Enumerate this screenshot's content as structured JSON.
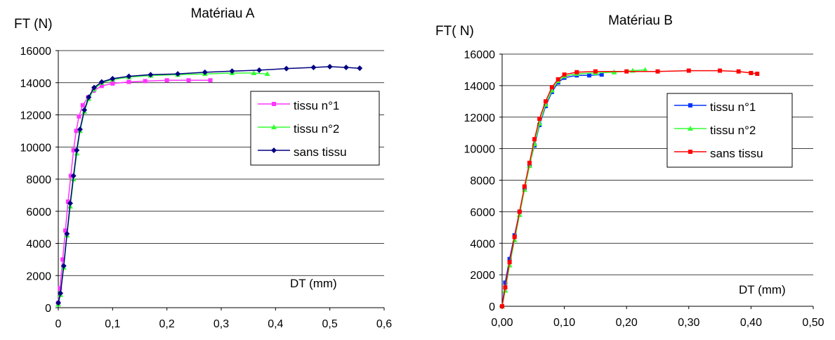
{
  "chart_data": [
    {
      "type": "line",
      "title": "Matériau A",
      "ylabel": "FT (N)",
      "xlabel": "DT (mm)",
      "xlim": [
        0,
        0.6
      ],
      "ylim": [
        0,
        16000
      ],
      "xticks": [
        "0",
        "0,1",
        "0,2",
        "0,3",
        "0,4",
        "0,5",
        "0,6"
      ],
      "yticks": [
        "0",
        "2000",
        "4000",
        "6000",
        "8000",
        "10000",
        "12000",
        "14000",
        "16000"
      ],
      "grid": "horizontal",
      "legend_position": "right",
      "series": [
        {
          "name": "tissu n°1",
          "color": "#ff33ff",
          "marker": "square",
          "points": [
            [
              0,
              300
            ],
            [
              0.003,
              1200
            ],
            [
              0.008,
              3000
            ],
            [
              0.013,
              4800
            ],
            [
              0.018,
              6600
            ],
            [
              0.023,
              8200
            ],
            [
              0.028,
              9800
            ],
            [
              0.033,
              11000
            ],
            [
              0.038,
              11900
            ],
            [
              0.045,
              12600
            ],
            [
              0.055,
              13100
            ],
            [
              0.065,
              13500
            ],
            [
              0.08,
              13800
            ],
            [
              0.1,
              13950
            ],
            [
              0.13,
              14050
            ],
            [
              0.16,
              14100
            ],
            [
              0.2,
              14150
            ],
            [
              0.24,
              14150
            ],
            [
              0.28,
              14150
            ]
          ]
        },
        {
          "name": "tissu n°2",
          "color": "#33ff33",
          "marker": "triangle",
          "points": [
            [
              0,
              200
            ],
            [
              0.004,
              800
            ],
            [
              0.01,
              2500
            ],
            [
              0.016,
              4500
            ],
            [
              0.022,
              6300
            ],
            [
              0.028,
              8000
            ],
            [
              0.034,
              9600
            ],
            [
              0.04,
              11000
            ],
            [
              0.048,
              12200
            ],
            [
              0.056,
              13000
            ],
            [
              0.066,
              13600
            ],
            [
              0.08,
              14000
            ],
            [
              0.1,
              14200
            ],
            [
              0.13,
              14350
            ],
            [
              0.17,
              14450
            ],
            [
              0.22,
              14500
            ],
            [
              0.27,
              14550
            ],
            [
              0.32,
              14600
            ],
            [
              0.36,
              14600
            ],
            [
              0.385,
              14550
            ]
          ]
        },
        {
          "name": "sans tissu",
          "color": "#000080",
          "marker": "diamond",
          "points": [
            [
              0,
              300
            ],
            [
              0.004,
              900
            ],
            [
              0.01,
              2600
            ],
            [
              0.016,
              4600
            ],
            [
              0.022,
              6500
            ],
            [
              0.028,
              8200
            ],
            [
              0.034,
              9800
            ],
            [
              0.04,
              11100
            ],
            [
              0.048,
              12300
            ],
            [
              0.056,
              13100
            ],
            [
              0.066,
              13700
            ],
            [
              0.08,
              14050
            ],
            [
              0.1,
              14250
            ],
            [
              0.13,
              14400
            ],
            [
              0.17,
              14500
            ],
            [
              0.22,
              14550
            ],
            [
              0.27,
              14650
            ],
            [
              0.32,
              14720
            ],
            [
              0.37,
              14780
            ],
            [
              0.42,
              14880
            ],
            [
              0.47,
              14950
            ],
            [
              0.5,
              15000
            ],
            [
              0.53,
              14950
            ],
            [
              0.555,
              14900
            ]
          ]
        }
      ]
    },
    {
      "type": "line",
      "title": "Matériau B",
      "ylabel": "FT( N)",
      "xlabel": "DT (mm)",
      "xlim": [
        0,
        0.5
      ],
      "ylim": [
        0,
        16000
      ],
      "xticks": [
        "0,00",
        "0,10",
        "0,20",
        "0,30",
        "0,40",
        "0,50"
      ],
      "yticks": [
        "0",
        "2000",
        "4000",
        "6000",
        "8000",
        "10000",
        "12000",
        "14000",
        "16000"
      ],
      "grid": "horizontal",
      "legend_position": "right",
      "series": [
        {
          "name": "tissu n°1",
          "color": "#0033ff",
          "marker": "square",
          "points": [
            [
              0,
              0
            ],
            [
              0.005,
              1500
            ],
            [
              0.012,
              3000
            ],
            [
              0.02,
              4500
            ],
            [
              0.028,
              6000
            ],
            [
              0.036,
              7500
            ],
            [
              0.044,
              9000
            ],
            [
              0.052,
              10200
            ],
            [
              0.06,
              11500
            ],
            [
              0.07,
              12700
            ],
            [
              0.08,
              13600
            ],
            [
              0.09,
              14200
            ],
            [
              0.1,
              14500
            ],
            [
              0.12,
              14650
            ],
            [
              0.14,
              14650
            ],
            [
              0.16,
              14700
            ]
          ]
        },
        {
          "name": "tissu n°2",
          "color": "#33ff33",
          "marker": "triangle",
          "points": [
            [
              0,
              0
            ],
            [
              0.005,
              1000
            ],
            [
              0.012,
              2600
            ],
            [
              0.02,
              4200
            ],
            [
              0.028,
              5800
            ],
            [
              0.036,
              7400
            ],
            [
              0.044,
              8900
            ],
            [
              0.052,
              10300
            ],
            [
              0.06,
              11600
            ],
            [
              0.07,
              12800
            ],
            [
              0.08,
              13700
            ],
            [
              0.09,
              14300
            ],
            [
              0.1,
              14600
            ],
            [
              0.12,
              14750
            ],
            [
              0.15,
              14800
            ],
            [
              0.18,
              14850
            ],
            [
              0.21,
              14950
            ],
            [
              0.23,
              15000
            ]
          ]
        },
        {
          "name": "sans tissu",
          "color": "#ff0000",
          "marker": "square",
          "points": [
            [
              0,
              0
            ],
            [
              0.005,
              1200
            ],
            [
              0.012,
              2800
            ],
            [
              0.02,
              4400
            ],
            [
              0.028,
              6000
            ],
            [
              0.036,
              7600
            ],
            [
              0.044,
              9100
            ],
            [
              0.052,
              10600
            ],
            [
              0.06,
              11900
            ],
            [
              0.07,
              13000
            ],
            [
              0.08,
              13900
            ],
            [
              0.09,
              14400
            ],
            [
              0.1,
              14700
            ],
            [
              0.12,
              14850
            ],
            [
              0.15,
              14900
            ],
            [
              0.2,
              14900
            ],
            [
              0.25,
              14900
            ],
            [
              0.3,
              14950
            ],
            [
              0.35,
              14950
            ],
            [
              0.38,
              14900
            ],
            [
              0.4,
              14800
            ],
            [
              0.41,
              14750
            ]
          ]
        }
      ]
    }
  ]
}
